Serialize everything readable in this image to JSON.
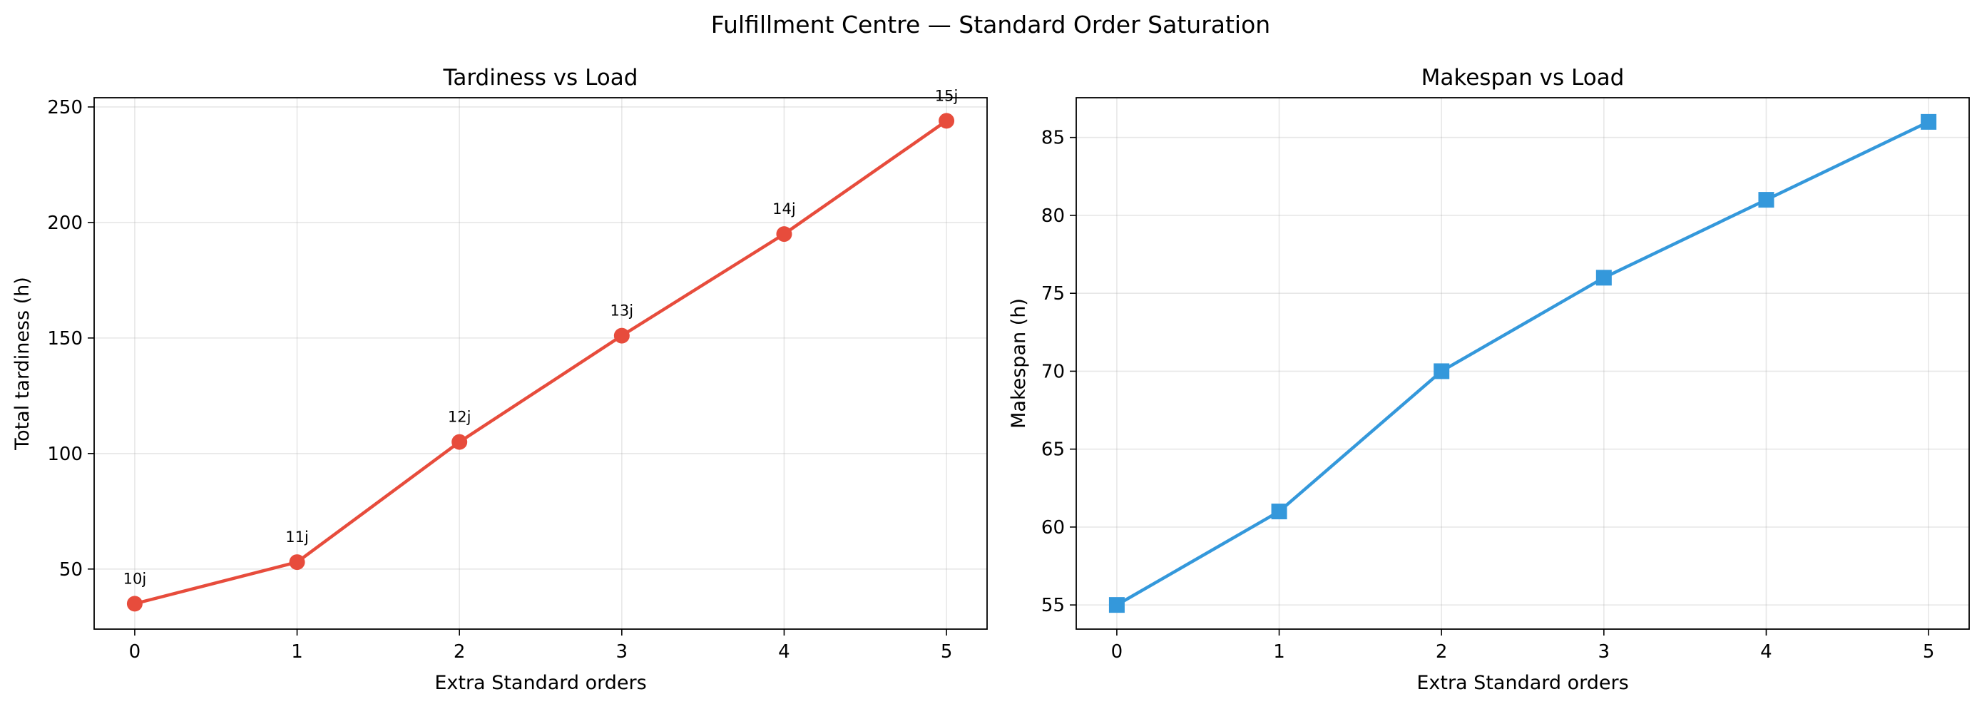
{
  "figure_title": "Fulfillment Centre — Standard Order Saturation",
  "chart_data": [
    {
      "type": "line",
      "title": "Tardiness vs Load",
      "xlabel": "Extra Standard orders",
      "ylabel": "Total tardiness (h)",
      "x": [
        0,
        1,
        2,
        3,
        4,
        5
      ],
      "xticks": [
        0,
        1,
        2,
        3,
        4,
        5
      ],
      "xlim": [
        -0.25,
        5.25
      ],
      "yticks": [
        50,
        100,
        150,
        200,
        250
      ],
      "ylim": [
        24,
        254
      ],
      "grid": true,
      "series": [
        {
          "values": [
            35,
            53,
            105,
            151,
            195,
            244
          ],
          "color": "#e74c3c",
          "marker": "circle",
          "point_labels": [
            "10j",
            "11j",
            "12j",
            "13j",
            "14j",
            "15j"
          ]
        }
      ]
    },
    {
      "type": "line",
      "title": "Makespan vs Load",
      "xlabel": "Extra Standard orders",
      "ylabel": "Makespan (h)",
      "x": [
        0,
        1,
        2,
        3,
        4,
        5
      ],
      "xticks": [
        0,
        1,
        2,
        3,
        4,
        5
      ],
      "xlim": [
        -0.25,
        5.25
      ],
      "yticks": [
        55,
        60,
        65,
        70,
        75,
        80,
        85
      ],
      "ylim": [
        53.45,
        87.55
      ],
      "grid": true,
      "series": [
        {
          "values": [
            55,
            61,
            70,
            76,
            81,
            86
          ],
          "color": "#3498db",
          "marker": "square",
          "point_labels": []
        }
      ]
    }
  ]
}
